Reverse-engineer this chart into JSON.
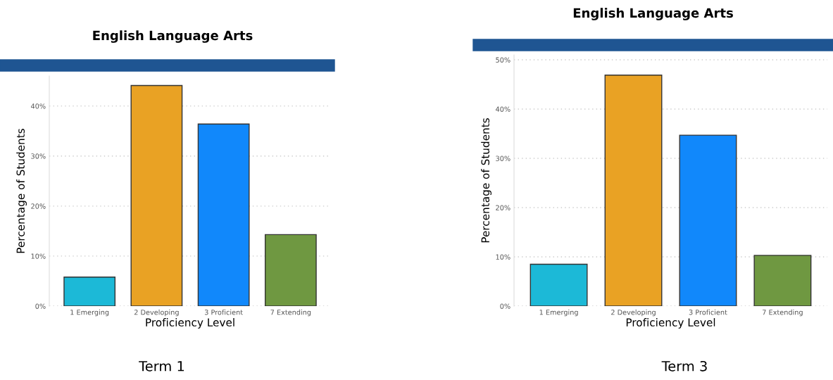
{
  "chart_data": [
    {
      "type": "bar",
      "title": "English Language Arts",
      "xlabel": "Proficiency Level",
      "ylabel": "Percentage of Students",
      "categories": [
        "1 Emerging",
        "2 Developing",
        "3 Proficient",
        "7 Extending"
      ],
      "values": [
        5.8,
        44.1,
        36.4,
        14.3
      ],
      "colors": [
        "#1cb9d7",
        "#e9a224",
        "#1188fb",
        "#6f9841"
      ],
      "ylim": [
        0,
        46
      ],
      "yticks": [
        {
          "value": 0,
          "label": "0%"
        },
        {
          "value": 10,
          "label": "10%"
        },
        {
          "value": 20,
          "label": "20%"
        },
        {
          "value": 30,
          "label": "30%"
        },
        {
          "value": 40,
          "label": "40%"
        }
      ],
      "grid": "y",
      "annotations": [
        "Term 1"
      ]
    },
    {
      "type": "bar",
      "title": "English Language Arts",
      "xlabel": "Proficiency Level",
      "ylabel": "Percentage of Students",
      "categories": [
        "1 Emerging",
        "2 Developing",
        "3 Proficient",
        "7 Extending"
      ],
      "values": [
        8.5,
        46.9,
        34.7,
        10.3
      ],
      "colors": [
        "#1cb9d7",
        "#e9a224",
        "#1188fb",
        "#6f9841"
      ],
      "ylim": [
        0,
        51
      ],
      "yticks": [
        {
          "value": 0,
          "label": "0%"
        },
        {
          "value": 10,
          "label": "10%"
        },
        {
          "value": 20,
          "label": "20%"
        },
        {
          "value": 30,
          "label": "30%"
        },
        {
          "value": 40,
          "label": "40%"
        },
        {
          "value": 50,
          "label": "50%"
        }
      ],
      "grid": "y",
      "annotations": [
        "Term 3"
      ]
    }
  ]
}
